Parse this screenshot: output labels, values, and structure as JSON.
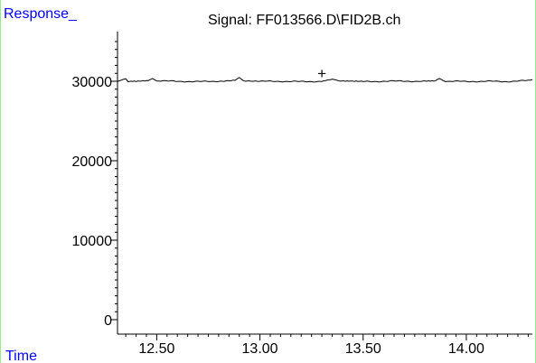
{
  "chart_data": {
    "type": "line",
    "title": "Signal: FF013566.D\\FID2B.ch",
    "ylabel": "Response_",
    "xlabel": "Time",
    "xlim": [
      12.31,
      14.32
    ],
    "ylim": [
      -800,
      36500
    ],
    "x_ticks": [
      12.5,
      13.0,
      13.5,
      14.0
    ],
    "x_tick_labels": [
      "12.50",
      "13.00",
      "13.50",
      "14.00"
    ],
    "y_ticks": [
      0,
      10000,
      20000,
      30000
    ],
    "y_tick_labels": [
      "0",
      "10000",
      "20000",
      "30000"
    ],
    "baseline": 30000,
    "series_points": [
      [
        12.31,
        30000
      ],
      [
        12.33,
        30120
      ],
      [
        12.35,
        30300
      ],
      [
        12.36,
        30000
      ],
      [
        12.4,
        29950
      ],
      [
        12.46,
        30050
      ],
      [
        12.48,
        30350
      ],
      [
        12.5,
        30050
      ],
      [
        12.6,
        30000
      ],
      [
        12.7,
        29950
      ],
      [
        12.8,
        30020
      ],
      [
        12.88,
        30100
      ],
      [
        12.9,
        30450
      ],
      [
        12.92,
        30100
      ],
      [
        13.0,
        29980
      ],
      [
        13.1,
        30000
      ],
      [
        13.2,
        29950
      ],
      [
        13.3,
        30000
      ],
      [
        13.35,
        30300
      ],
      [
        13.38,
        30000
      ],
      [
        13.5,
        29950
      ],
      [
        13.6,
        30000
      ],
      [
        13.7,
        30020
      ],
      [
        13.8,
        29980
      ],
      [
        13.85,
        30050
      ],
      [
        13.87,
        30300
      ],
      [
        13.9,
        30000
      ],
      [
        14.0,
        29970
      ],
      [
        14.1,
        30000
      ],
      [
        14.2,
        29960
      ],
      [
        14.3,
        30100
      ],
      [
        14.32,
        30200
      ]
    ],
    "marker": {
      "symbol": "+",
      "x": 13.3,
      "y": 31050
    },
    "colors": {
      "axis_label": "#0000ff",
      "frame": "#90ee90",
      "line": "#000000"
    }
  }
}
